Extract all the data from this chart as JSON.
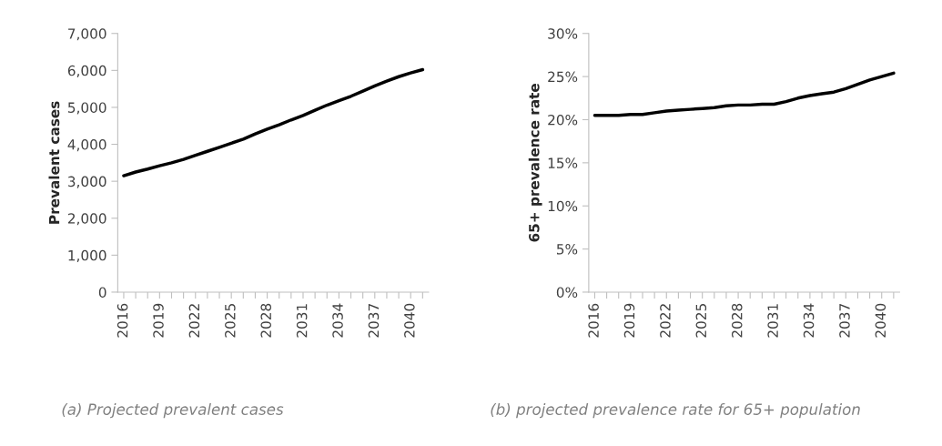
{
  "chart_data": [
    {
      "type": "line",
      "ylabel": "Prevalent cases",
      "annotations": [
        "(a) Projected prevalent cases"
      ],
      "categories": [
        "2016",
        null,
        null,
        "2019",
        null,
        null,
        "2022",
        null,
        null,
        "2025",
        null,
        null,
        "2028",
        null,
        null,
        "2031",
        null,
        null,
        "2034",
        null,
        null,
        "2037",
        null,
        null,
        "2040",
        null
      ],
      "series": [
        {
          "color": "#000000",
          "values": [
            3150,
            3250,
            3330,
            3420,
            3500,
            3590,
            3700,
            3810,
            3920,
            4030,
            4140,
            4280,
            4410,
            4530,
            4660,
            4780,
            4920,
            5060,
            5180,
            5300,
            5440,
            5580,
            5710,
            5830,
            5930,
            6020
          ]
        }
      ],
      "ylim": [
        0,
        7000
      ],
      "yticks": [
        {
          "value": 0,
          "label": "0"
        },
        {
          "value": 1000,
          "label": "1,000"
        },
        {
          "value": 2000,
          "label": "2,000"
        },
        {
          "value": 3000,
          "label": "3,000"
        },
        {
          "value": 4000,
          "label": "4,000"
        },
        {
          "value": 5000,
          "label": "5,000"
        },
        {
          "value": 6000,
          "label": "6,000"
        },
        {
          "value": 7000,
          "label": "7,000"
        }
      ]
    },
    {
      "type": "line",
      "ylabel": "65+ prevalence rate",
      "annotations": [
        "(b) projected prevalence rate for 65+ population"
      ],
      "categories": [
        "2016",
        null,
        null,
        "2019",
        null,
        null,
        "2022",
        null,
        null,
        "2025",
        null,
        null,
        "2028",
        null,
        null,
        "2031",
        null,
        null,
        "2034",
        null,
        null,
        "2037",
        null,
        null,
        "2040",
        null
      ],
      "series": [
        {
          "color": "#000000",
          "values": [
            20.5,
            20.5,
            20.5,
            20.6,
            20.6,
            20.8,
            21.0,
            21.1,
            21.2,
            21.3,
            21.4,
            21.6,
            21.7,
            21.7,
            21.8,
            21.8,
            22.1,
            22.5,
            22.8,
            23.0,
            23.2,
            23.6,
            24.1,
            24.6,
            25.0,
            25.4
          ]
        }
      ],
      "ylim": [
        0,
        30
      ],
      "yticks": [
        {
          "value": 0,
          "label": "0%"
        },
        {
          "value": 5,
          "label": "5%"
        },
        {
          "value": 10,
          "label": "10%"
        },
        {
          "value": 15,
          "label": "15%"
        },
        {
          "value": 20,
          "label": "20%"
        },
        {
          "value": 25,
          "label": "25%"
        },
        {
          "value": 30,
          "label": "30%"
        }
      ]
    }
  ]
}
